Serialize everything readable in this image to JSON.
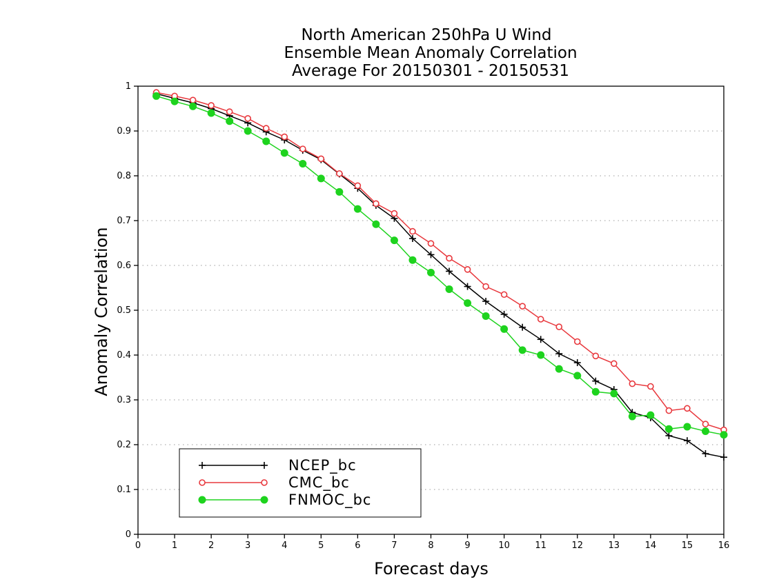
{
  "chart_data": {
    "type": "line",
    "title": [
      "North American 250hPa U Wind",
      "Ensemble Mean Anomaly Correlation",
      "Average For 20150301 - 20150531"
    ],
    "xlabel": "Forecast days",
    "ylabel": "Anomaly Correlation",
    "xlim": [
      0,
      16
    ],
    "ylim": [
      0,
      1
    ],
    "xticks": [
      "0",
      "1",
      "2",
      "3",
      "4",
      "5",
      "6",
      "7",
      "8",
      "9",
      "10",
      "11",
      "12",
      "13",
      "14",
      "15",
      "16"
    ],
    "yticks": [
      "0",
      "0.1",
      "0.2",
      "0.3",
      "0.4",
      "0.5",
      "0.6",
      "0.7",
      "0.8",
      "0.9",
      "1"
    ],
    "grid": true,
    "legend_position": "bottom-left",
    "x": [
      0.5,
      1,
      1.5,
      2,
      2.5,
      3,
      3.5,
      4,
      4.5,
      5,
      5.5,
      6,
      6.5,
      7,
      7.5,
      8,
      8.5,
      9,
      9.5,
      10,
      10.5,
      11,
      11.5,
      12,
      12.5,
      13,
      13.5,
      14,
      14.5,
      15,
      15.5,
      16
    ],
    "series": [
      {
        "name": "NCEP_bc",
        "color": "#000000",
        "marker": "plus",
        "values": [
          0.983,
          0.973,
          0.963,
          0.95,
          0.934,
          0.918,
          0.898,
          0.88,
          0.857,
          0.836,
          0.804,
          0.772,
          0.734,
          0.705,
          0.66,
          0.624,
          0.587,
          0.553,
          0.52,
          0.491,
          0.462,
          0.435,
          0.403,
          0.383,
          0.342,
          0.323,
          0.272,
          0.26,
          0.22,
          0.209,
          0.18,
          0.172
        ]
      },
      {
        "name": "CMC_bc",
        "color": "#e8383d",
        "marker": "open-circle",
        "values": [
          0.986,
          0.978,
          0.969,
          0.957,
          0.943,
          0.928,
          0.906,
          0.887,
          0.86,
          0.838,
          0.805,
          0.778,
          0.738,
          0.716,
          0.676,
          0.649,
          0.616,
          0.591,
          0.553,
          0.535,
          0.509,
          0.48,
          0.463,
          0.43,
          0.398,
          0.381,
          0.336,
          0.33,
          0.276,
          0.281,
          0.246,
          0.233
        ]
      },
      {
        "name": "FNMOC_bc",
        "color": "#1ed31e",
        "marker": "filled-circle",
        "values": [
          0.978,
          0.966,
          0.955,
          0.94,
          0.922,
          0.9,
          0.877,
          0.851,
          0.827,
          0.794,
          0.764,
          0.726,
          0.692,
          0.656,
          0.612,
          0.584,
          0.547,
          0.516,
          0.487,
          0.458,
          0.411,
          0.4,
          0.369,
          0.354,
          0.318,
          0.314,
          0.263,
          0.266,
          0.235,
          0.24,
          0.23,
          0.222
        ]
      }
    ]
  }
}
